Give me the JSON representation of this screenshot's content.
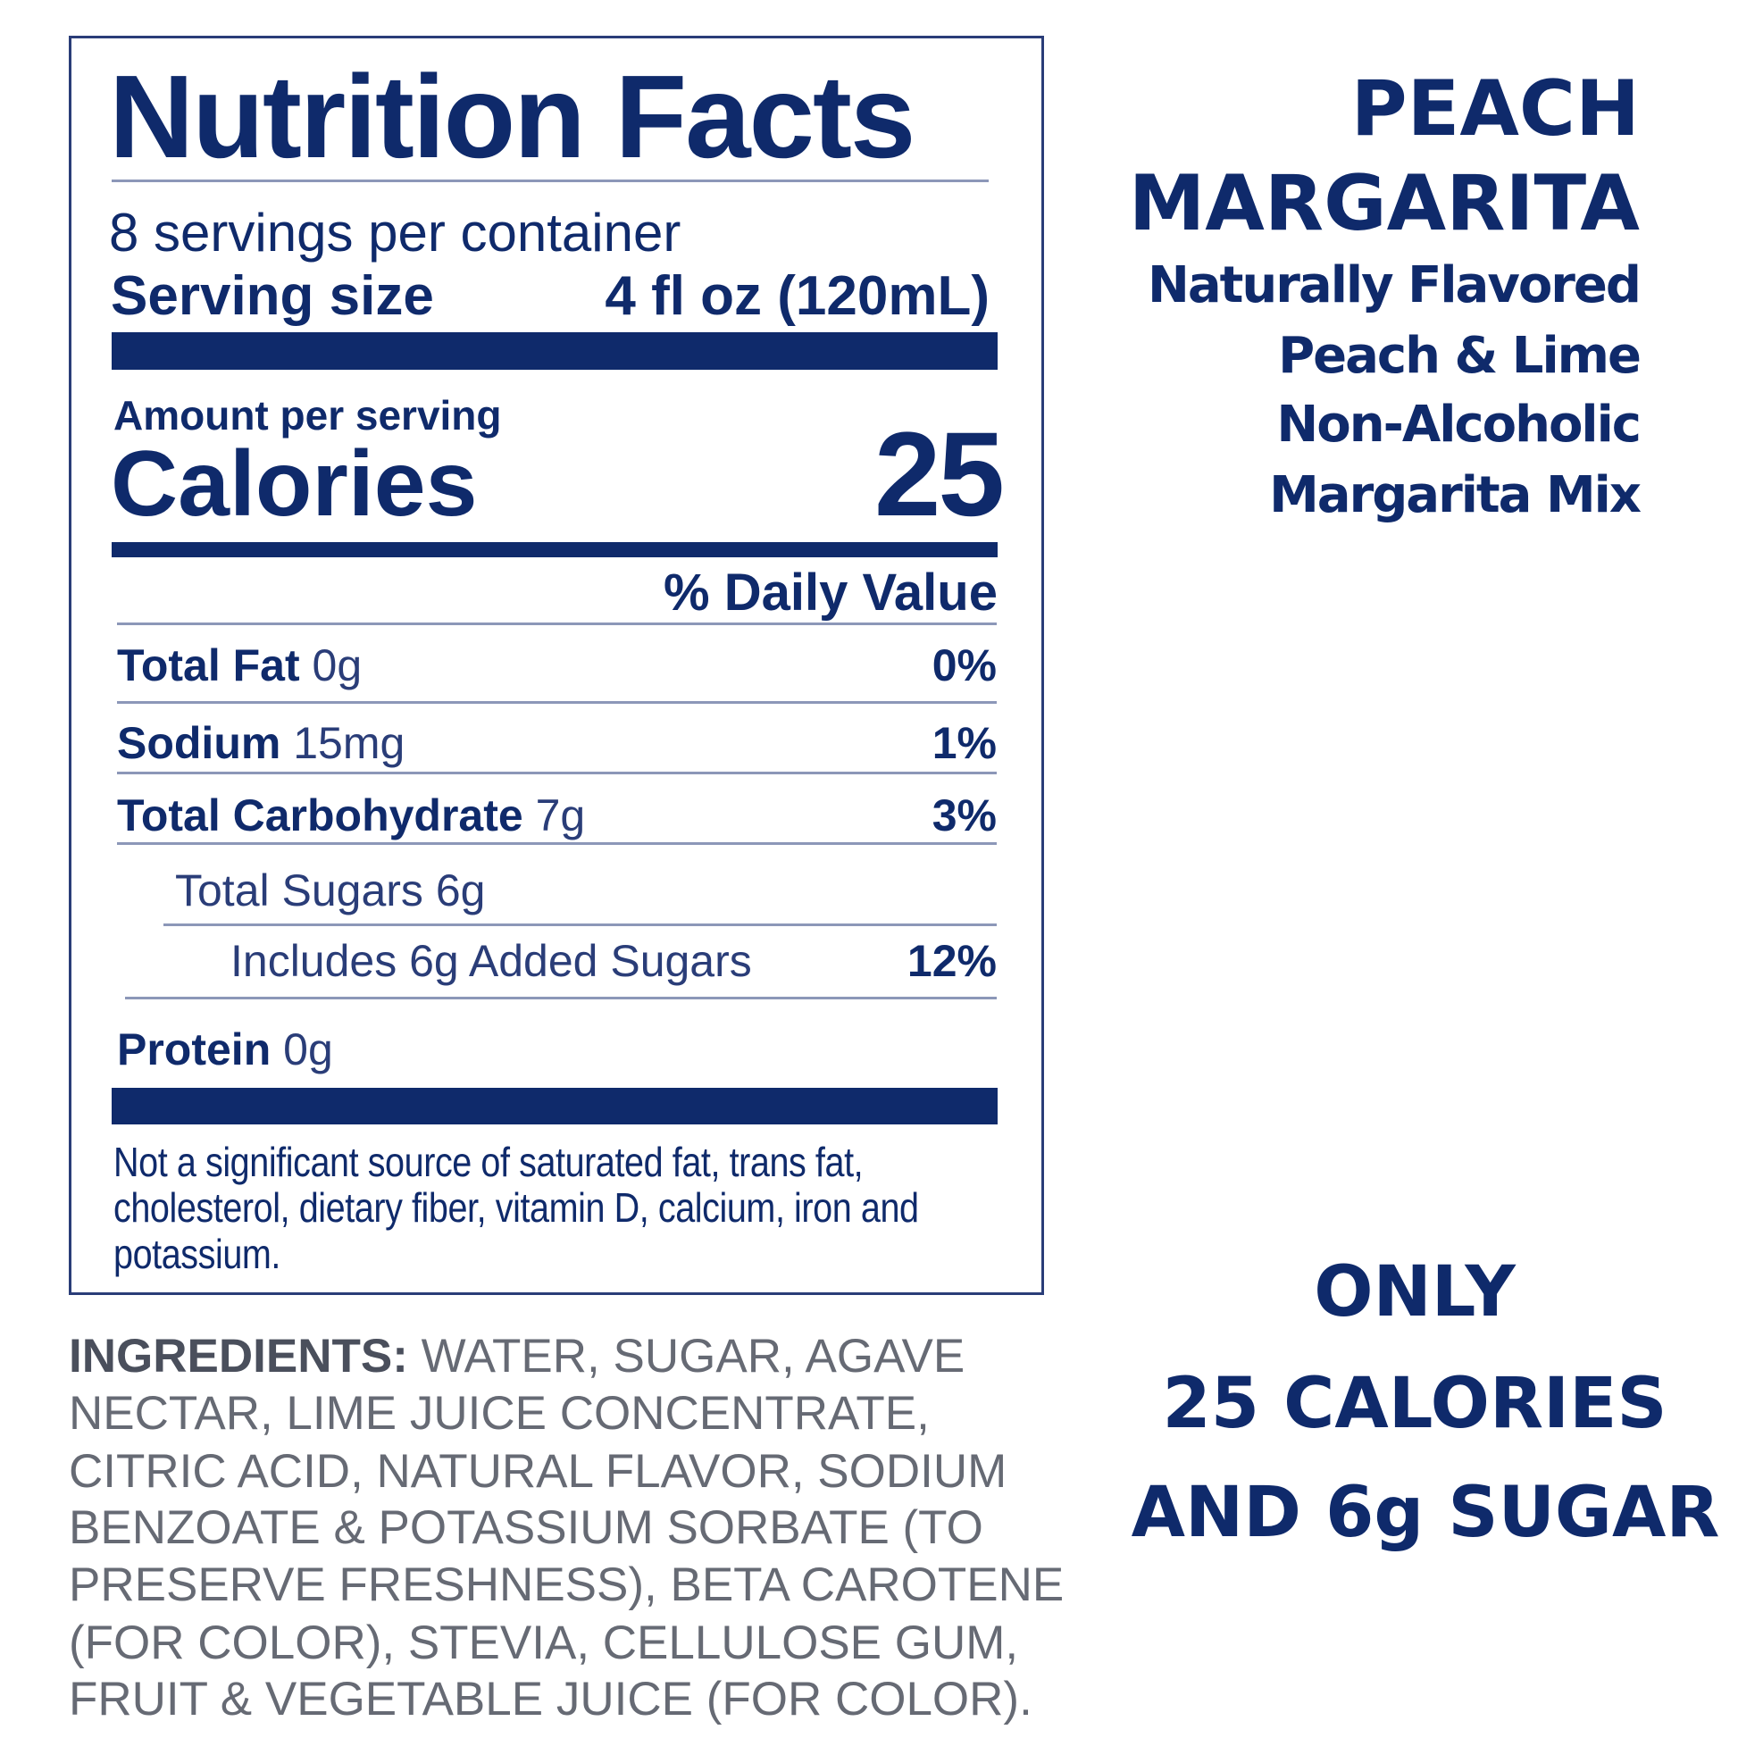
{
  "label": {
    "title": "Nutrition Facts",
    "servings": "8 servings per container",
    "serving_size_label": "Serving size",
    "serving_size_value": "4 fl oz (120mL)",
    "amount_per_serving": "Amount per serving",
    "calories_label": "Calories",
    "calories_value": "25",
    "daily_value_header": "% Daily Value",
    "rows": [
      {
        "name": "Total Fat",
        "amount": "0g",
        "dv": "0%"
      },
      {
        "name": "Sodium",
        "amount": "15mg",
        "dv": "1%"
      },
      {
        "name": "Total Carbohydrate",
        "amount": "7g",
        "dv": "3%"
      },
      {
        "name": "Total Sugars 6g",
        "amount": "",
        "dv": ""
      },
      {
        "name": "Includes 6g Added Sugars",
        "amount": "",
        "dv": "12%"
      },
      {
        "name": "Protein",
        "amount": "0g",
        "dv": ""
      }
    ],
    "footnote": [
      "Not a significant source of saturated fat, trans fat,",
      "cholesterol, dietary fiber, vitamin D, calcium, iron and",
      "potassium."
    ]
  },
  "ingredients": {
    "heading": "INGREDIENTS:",
    "lines": [
      " WATER, SUGAR, AGAVE",
      "NECTAR, LIME JUICE CONCENTRATE,",
      "CITRIC ACID, NATURAL FLAVOR, SODIUM",
      "BENZOATE & POTASSIUM SORBATE (TO",
      "PRESERVE FRESHNESS), BETA CAROTENE",
      "(FOR COLOR), STEVIA, CELLULOSE GUM,",
      "FRUIT & VEGETABLE JUICE (FOR COLOR)."
    ]
  },
  "product": {
    "name_line1": "PEACH",
    "name_line2": "MARGARITA",
    "description": [
      "Naturally Flavored",
      "Peach & Lime",
      "Non-Alcoholic",
      "Margarita Mix"
    ]
  },
  "callout": [
    "ONLY",
    "25 CALORIES",
    "AND 6g SUGAR"
  ],
  "colors": {
    "navy": "#0f2a6b",
    "ingredients_gray": "#666a74"
  }
}
